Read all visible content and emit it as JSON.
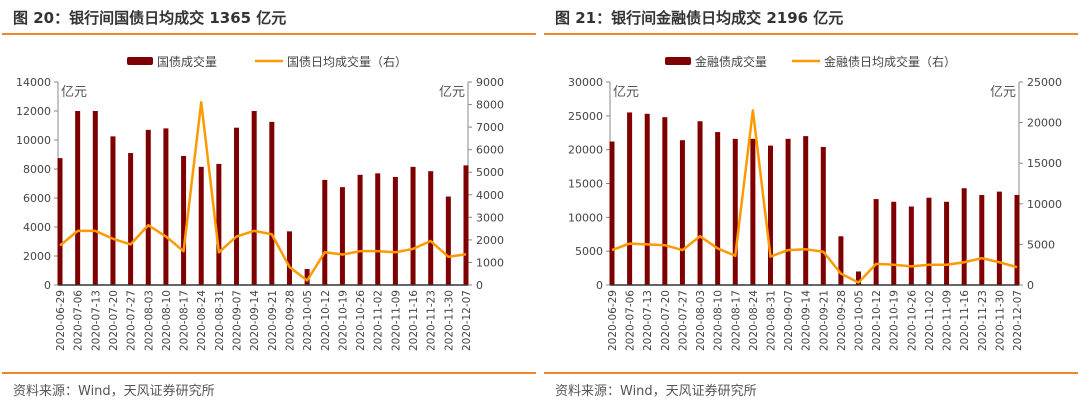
{
  "chart_data": [
    {
      "type": "bar+line",
      "title": "图 20：银行间国债日均成交 1365 亿元",
      "source": "资料来源：Wind，天风证券研究所",
      "left_unit": "亿元",
      "right_unit": "亿元",
      "ylim": [
        0,
        14000
      ],
      "y2lim": [
        0,
        9000
      ],
      "yticks": [
        0,
        2000,
        4000,
        6000,
        8000,
        10000,
        12000,
        14000
      ],
      "y2ticks": [
        0,
        1000,
        2000,
        3000,
        4000,
        5000,
        6000,
        7000,
        8000,
        9000
      ],
      "categories": [
        "2020-06-29",
        "2020-07-06",
        "2020-07-13",
        "2020-07-20",
        "2020-07-27",
        "2020-08-03",
        "2020-08-10",
        "2020-08-17",
        "2020-08-24",
        "2020-08-31",
        "2020-09-07",
        "2020-09-14",
        "2020-09-21",
        "2020-09-28",
        "2020-10-05",
        "2020-10-12",
        "2020-10-19",
        "2020-10-26",
        "2020-11-02",
        "2020-11-09",
        "2020-11-16",
        "2020-11-23",
        "2020-11-30",
        "2020-12-07"
      ],
      "series": [
        {
          "name": "国债成交量",
          "type": "bar",
          "axis": "left",
          "color": "#7f0000",
          "values": [
            8750,
            12000,
            12000,
            10250,
            9100,
            10700,
            10800,
            8900,
            8150,
            8350,
            10850,
            12000,
            11250,
            3700,
            1100,
            7250,
            6750,
            7600,
            7700,
            7450,
            8150,
            7850,
            6100,
            8250
          ]
        },
        {
          "name": "国债日均成交量（右）",
          "type": "line",
          "axis": "right",
          "color": "#ff9900",
          "values": [
            1750,
            2400,
            2400,
            2050,
            1800,
            2650,
            2150,
            1500,
            8100,
            1450,
            2150,
            2400,
            2250,
            800,
            200,
            1450,
            1350,
            1500,
            1500,
            1450,
            1600,
            1950,
            1250,
            1365
          ]
        }
      ]
    },
    {
      "type": "bar+line",
      "title": "图 21：银行间金融债日均成交 2196 亿元",
      "source": "资料来源：Wind，天风证券研究所",
      "left_unit": "亿元",
      "right_unit": "亿元",
      "ylim": [
        0,
        30000
      ],
      "y2lim": [
        0,
        25000
      ],
      "yticks": [
        0,
        5000,
        10000,
        15000,
        20000,
        25000,
        30000
      ],
      "y2ticks": [
        0,
        5000,
        10000,
        15000,
        20000,
        25000
      ],
      "categories": [
        "2020-06-29",
        "2020-07-06",
        "2020-07-13",
        "2020-07-20",
        "2020-07-27",
        "2020-08-03",
        "2020-08-10",
        "2020-08-17",
        "2020-08-24",
        "2020-08-31",
        "2020-09-07",
        "2020-09-14",
        "2020-09-21",
        "2020-09-28",
        "2020-10-05",
        "2020-10-12",
        "2020-10-19",
        "2020-10-26",
        "2020-11-02",
        "2020-11-09",
        "2020-11-16",
        "2020-11-23",
        "2020-11-30",
        "2020-12-07"
      ],
      "series": [
        {
          "name": "金融债成交量",
          "type": "bar",
          "axis": "left",
          "color": "#7f0000",
          "values": [
            21200,
            25500,
            25300,
            24800,
            21400,
            24200,
            22600,
            21600,
            21600,
            20600,
            21600,
            22000,
            20400,
            7200,
            2000,
            12700,
            12300,
            11600,
            12900,
            12300,
            14300,
            13300,
            13800,
            13300
          ]
        },
        {
          "name": "金融债日均成交量（右）",
          "type": "line",
          "axis": "right",
          "color": "#ff9900",
          "values": [
            4300,
            5100,
            5000,
            4900,
            4300,
            6000,
            4500,
            3600,
            21500,
            3500,
            4300,
            4400,
            4100,
            1400,
            300,
            2600,
            2500,
            2300,
            2500,
            2500,
            2800,
            3300,
            2800,
            2196
          ]
        }
      ]
    }
  ]
}
